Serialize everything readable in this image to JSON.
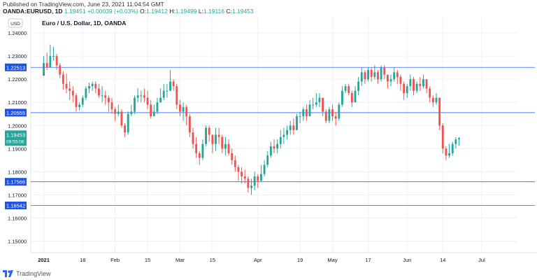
{
  "header": {
    "published": "Published on TradingView.com, June 23, 2021 11:04:54 GMT",
    "symbol": "OANDA:EURUSD, 1D",
    "last": "1.19451",
    "change": "+0.00039 (+0.03%)",
    "o_label": "O:",
    "o": "1.19412",
    "h_label": "H:",
    "h": "1.19499",
    "l_label": "L:",
    "l": "1.19116",
    "c_label": "C:",
    "c": "1.19453"
  },
  "currency_badge": "USD",
  "legend_title": "Euro / U.S. Dollar, 1D, OANDA",
  "footer": {
    "brand": "TradingView"
  },
  "colors": {
    "up": "#26a69a",
    "down": "#ef5350",
    "hline": "#2962ff",
    "label_bg": "#1e53e5",
    "price_bg": "#26a69a"
  },
  "chart_data": {
    "type": "candlestick",
    "title": "Euro / U.S. Dollar, 1D, OANDA",
    "ylim": [
      1.145,
      1.247
    ],
    "xlim": [
      -4,
      146
    ],
    "y_ticks": [
      "1.24000",
      "1.23000",
      "1.22000",
      "1.21000",
      "1.20000",
      "1.19000",
      "1.18000",
      "1.17000",
      "1.16000",
      "1.15000"
    ],
    "x_ticks": [
      {
        "i": 0,
        "label": "2021"
      },
      {
        "i": 12,
        "label": "18"
      },
      {
        "i": 22,
        "label": "Feb"
      },
      {
        "i": 32,
        "label": "15"
      },
      {
        "i": 42,
        "label": "Mar"
      },
      {
        "i": 52,
        "label": "15"
      },
      {
        "i": 66,
        "label": "Apr"
      },
      {
        "i": 79,
        "label": "19"
      },
      {
        "i": 89,
        "label": "May"
      },
      {
        "i": 100,
        "label": "17"
      },
      {
        "i": 112,
        "label": "Jun"
      },
      {
        "i": 123,
        "label": "14"
      },
      {
        "i": 135,
        "label": "Jul"
      }
    ],
    "hlines": [
      "1.22513",
      "1.20555",
      "1.17566",
      "1.16542"
    ],
    "last_price": "1.19453",
    "countdown": "09:55:08",
    "close_start": 1.2215,
    "candles": [
      [
        1.227,
        1.23,
        1.2265
      ],
      [
        1.225,
        1.2315,
        1.224
      ],
      [
        1.23,
        1.235,
        1.229
      ],
      [
        1.23,
        1.234,
        1.228
      ],
      [
        1.226,
        1.231,
        1.224
      ],
      [
        1.222,
        1.227,
        1.2205
      ],
      [
        1.218,
        1.2235,
        1.2155
      ],
      [
        1.216,
        1.2225,
        1.214
      ],
      [
        1.215,
        1.219,
        1.211
      ],
      [
        1.213,
        1.217,
        1.21
      ],
      [
        1.208,
        1.214,
        1.206
      ],
      [
        1.209,
        1.21,
        1.2065
      ],
      [
        1.212,
        1.213,
        1.208
      ],
      [
        1.216,
        1.217,
        1.211
      ],
      [
        1.217,
        1.2185,
        1.214
      ],
      [
        1.218,
        1.219,
        1.215
      ],
      [
        1.216,
        1.219,
        1.214
      ],
      [
        1.213,
        1.218,
        1.212
      ],
      [
        1.213,
        1.217,
        1.21
      ],
      [
        1.212,
        1.215,
        1.209
      ],
      [
        1.21,
        1.213,
        1.206
      ],
      [
        1.207,
        1.212,
        1.205
      ],
      [
        1.205,
        1.208,
        1.202
      ],
      [
        1.206,
        1.209,
        1.204
      ],
      [
        1.2,
        1.207,
        1.199
      ],
      [
        1.197,
        1.201,
        1.195
      ],
      [
        1.205,
        1.206,
        1.196
      ],
      [
        1.206,
        1.209,
        1.204
      ],
      [
        1.212,
        1.213,
        1.205
      ],
      [
        1.213,
        1.216,
        1.21
      ],
      [
        1.213,
        1.215,
        1.21
      ],
      [
        1.212,
        1.216,
        1.21
      ],
      [
        1.209,
        1.215,
        1.207
      ],
      [
        1.204,
        1.211,
        1.203
      ],
      [
        1.206,
        1.209,
        1.204
      ],
      [
        1.21,
        1.212,
        1.205
      ],
      [
        1.212,
        1.216,
        1.21
      ],
      [
        1.215,
        1.218,
        1.211
      ],
      [
        1.215,
        1.218,
        1.212
      ],
      [
        1.219,
        1.224,
        1.215
      ],
      [
        1.217,
        1.22,
        1.215
      ],
      [
        1.209,
        1.218,
        1.207
      ],
      [
        1.206,
        1.211,
        1.204
      ],
      [
        1.208,
        1.21,
        1.202
      ],
      [
        1.204,
        1.209,
        1.2
      ],
      [
        1.197,
        1.205,
        1.195
      ],
      [
        1.192,
        1.199,
        1.19
      ],
      [
        1.188,
        1.195,
        1.186
      ],
      [
        1.186,
        1.189,
        1.183
      ],
      [
        1.192,
        1.194,
        1.185
      ],
      [
        1.199,
        1.2,
        1.191
      ],
      [
        1.196,
        1.2,
        1.193
      ],
      [
        1.192,
        1.196,
        1.188
      ],
      [
        1.196,
        1.199,
        1.189
      ],
      [
        1.195,
        1.199,
        1.192
      ],
      [
        1.19,
        1.196,
        1.188
      ],
      [
        1.192,
        1.195,
        1.187
      ],
      [
        1.188,
        1.194,
        1.187
      ],
      [
        1.185,
        1.19,
        1.183
      ],
      [
        1.182,
        1.187,
        1.18
      ],
      [
        1.18,
        1.183,
        1.176
      ],
      [
        1.178,
        1.182,
        1.175
      ],
      [
        1.177,
        1.181,
        1.175
      ],
      [
        1.173,
        1.178,
        1.171
      ],
      [
        1.174,
        1.177,
        1.17
      ],
      [
        1.178,
        1.18,
        1.172
      ],
      [
        1.176,
        1.179,
        1.173
      ],
      [
        1.179,
        1.183,
        1.177
      ],
      [
        1.183,
        1.185,
        1.178
      ],
      [
        1.187,
        1.189,
        1.182
      ],
      [
        1.191,
        1.193,
        1.186
      ],
      [
        1.19,
        1.194,
        1.188
      ],
      [
        1.192,
        1.194,
        1.188
      ],
      [
        1.195,
        1.198,
        1.19
      ],
      [
        1.196,
        1.199,
        1.192
      ],
      [
        1.198,
        1.2,
        1.194
      ],
      [
        1.2,
        1.202,
        1.196
      ],
      [
        1.198,
        1.203,
        1.196
      ],
      [
        1.204,
        1.205,
        1.198
      ],
      [
        1.204,
        1.206,
        1.201
      ],
      [
        1.207,
        1.208,
        1.202
      ],
      [
        1.204,
        1.209,
        1.202
      ],
      [
        1.209,
        1.211,
        1.204
      ],
      [
        1.209,
        1.212,
        1.207
      ],
      [
        1.21,
        1.214,
        1.208
      ],
      [
        1.212,
        1.214,
        1.208
      ],
      [
        1.206,
        1.211,
        1.204
      ],
      [
        1.202,
        1.207,
        1.201
      ],
      [
        1.207,
        1.208,
        1.201
      ],
      [
        1.204,
        1.209,
        1.202
      ],
      [
        1.203,
        1.206,
        1.2
      ],
      [
        1.209,
        1.21,
        1.202
      ],
      [
        1.215,
        1.217,
        1.208
      ],
      [
        1.217,
        1.218,
        1.214
      ],
      [
        1.214,
        1.218,
        1.213
      ],
      [
        1.21,
        1.215,
        1.208
      ],
      [
        1.215,
        1.217,
        1.21
      ],
      [
        1.219,
        1.221,
        1.213
      ],
      [
        1.223,
        1.225,
        1.217
      ],
      [
        1.22,
        1.224,
        1.218
      ],
      [
        1.224,
        1.225,
        1.219
      ],
      [
        1.221,
        1.225,
        1.219
      ],
      [
        1.223,
        1.226,
        1.22
      ],
      [
        1.22,
        1.224,
        1.218
      ],
      [
        1.225,
        1.226,
        1.219
      ],
      [
        1.222,
        1.226,
        1.22
      ],
      [
        1.219,
        1.222,
        1.216
      ],
      [
        1.22,
        1.222,
        1.217
      ],
      [
        1.223,
        1.225,
        1.219
      ],
      [
        1.221,
        1.224,
        1.218
      ],
      [
        1.218,
        1.222,
        1.215
      ],
      [
        1.214,
        1.219,
        1.211
      ],
      [
        1.217,
        1.218,
        1.212
      ],
      [
        1.22,
        1.222,
        1.215
      ],
      [
        1.215,
        1.221,
        1.213
      ],
      [
        1.218,
        1.219,
        1.214
      ],
      [
        1.217,
        1.221,
        1.215
      ],
      [
        1.22,
        1.222,
        1.216
      ],
      [
        1.216,
        1.22,
        1.214
      ],
      [
        1.212,
        1.217,
        1.21
      ],
      [
        1.21,
        1.213,
        1.208
      ],
      [
        1.212,
        1.214,
        1.209
      ],
      [
        1.2,
        1.212,
        1.198
      ],
      [
        1.19,
        1.201,
        1.188
      ],
      [
        1.187,
        1.191,
        1.185
      ],
      [
        1.188,
        1.192,
        1.186
      ],
      [
        1.192,
        1.193,
        1.187
      ],
      [
        1.194,
        1.195,
        1.19
      ],
      [
        1.1945,
        1.195,
        1.1912
      ]
    ]
  }
}
